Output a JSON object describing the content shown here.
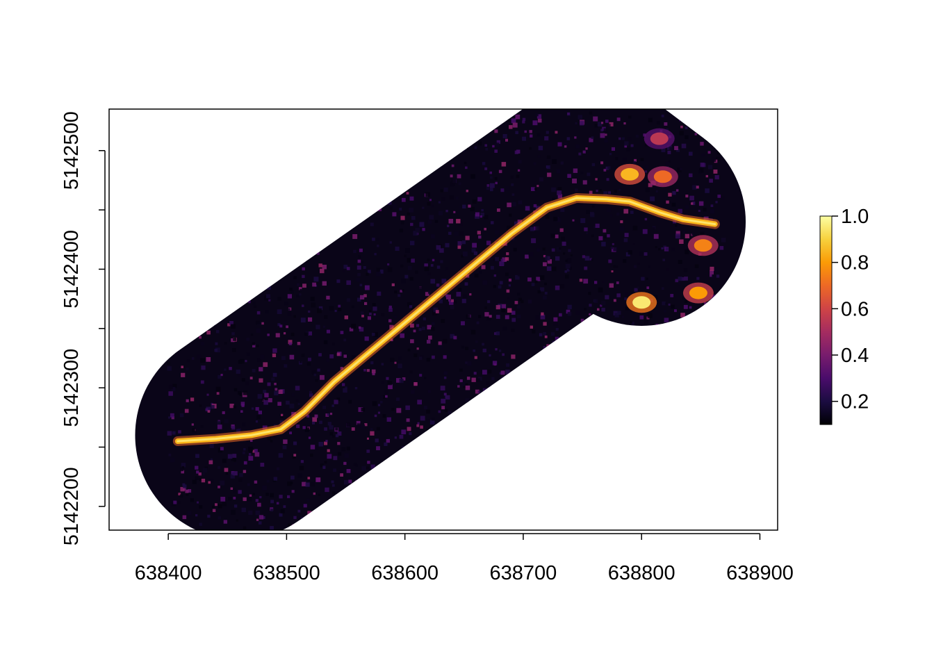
{
  "chart_data": {
    "type": "heatmap",
    "title": "",
    "xlabel": "",
    "ylabel": "",
    "xlim": [
      638350,
      638915
    ],
    "ylim": [
      5142180,
      5142535
    ],
    "x_ticks": [
      638400,
      638500,
      638600,
      638700,
      638800,
      638900
    ],
    "y_ticks": [
      5142200,
      5142250,
      5142300,
      5142350,
      5142400,
      5142450,
      5142500
    ],
    "y_tick_labels": [
      "5142200",
      "",
      "5142300",
      "",
      "5142400",
      "",
      "5142500"
    ],
    "x_tick_labels": [
      "638400",
      "638500",
      "638600",
      "638700",
      "638800",
      "638900"
    ],
    "grid": false,
    "value_range": [
      0.1,
      1.0
    ],
    "colorbar": {
      "position": "right",
      "ticks": [
        0.2,
        0.4,
        0.6,
        0.8,
        1.0
      ],
      "tick_labels": [
        "0.2",
        "0.4",
        "0.6",
        "0.8",
        "1.0"
      ],
      "palette": [
        "#000004",
        "#1B0C41",
        "#4A0C6B",
        "#781C6D",
        "#A52C60",
        "#CF4446",
        "#ED6925",
        "#FB9B06",
        "#F7D13D",
        "#FCFFA4"
      ]
    },
    "study_area": {
      "shape": "buffered corridor",
      "centerline": [
        [
          638460,
          5142260
        ],
        [
          638760,
          5142470
        ],
        [
          638800,
          5142440
        ]
      ],
      "buffer_radius": 88
    },
    "bright_path": [
      [
        638408,
        5142255
      ],
      [
        638440,
        5142257
      ],
      [
        638470,
        5142260
      ],
      [
        638495,
        5142265
      ],
      [
        638515,
        5142280
      ],
      [
        638540,
        5142305
      ],
      [
        638570,
        5142330
      ],
      [
        638600,
        5142355
      ],
      [
        638630,
        5142380
      ],
      [
        638660,
        5142405
      ],
      [
        638690,
        5142430
      ],
      [
        638720,
        5142452
      ],
      [
        638745,
        5142460
      ],
      [
        638770,
        5142459
      ],
      [
        638790,
        5142457
      ],
      [
        638815,
        5142448
      ],
      [
        638835,
        5142442
      ],
      [
        638862,
        5142438
      ]
    ],
    "bright_patches": [
      {
        "x": 638790,
        "y": 5142480,
        "value": 0.85
      },
      {
        "x": 638818,
        "y": 5142478,
        "value": 0.7
      },
      {
        "x": 638800,
        "y": 5142372,
        "value": 0.95
      },
      {
        "x": 638848,
        "y": 5142380,
        "value": 0.8
      },
      {
        "x": 638852,
        "y": 5142420,
        "value": 0.75
      },
      {
        "x": 638815,
        "y": 5142510,
        "value": 0.55
      }
    ]
  }
}
